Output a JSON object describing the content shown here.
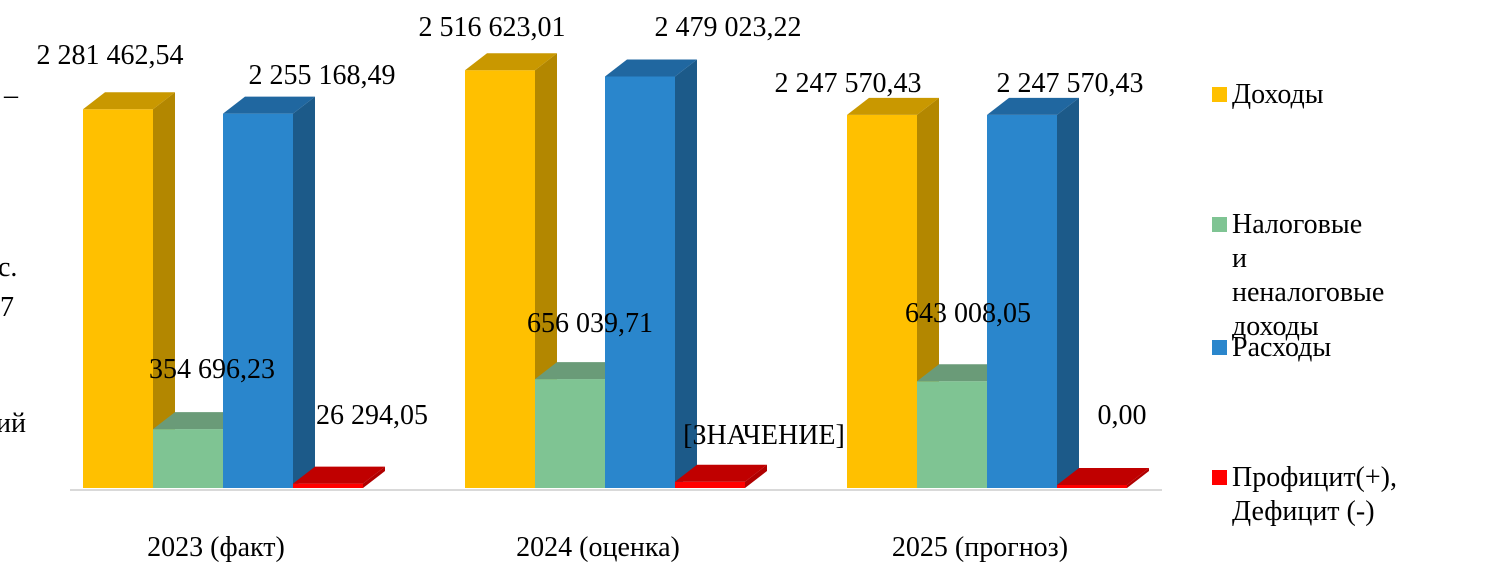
{
  "chart_data": {
    "type": "bar",
    "categories": [
      "2023 (факт)",
      "2024 (оценка)",
      "2025 (прогноз)"
    ],
    "series": [
      {
        "name": "Доходы",
        "color": "#ffc000",
        "side_color": "#b38700",
        "top_color": "#c99800",
        "values": [
          2281462.54,
          2516623.01,
          2247570.43
        ],
        "labels": [
          "2 281 462,54",
          "2 516 623,01",
          "2 247 570,43"
        ]
      },
      {
        "name": "Налоговые и неналоговые доходы",
        "color": "#7fc493",
        "side_color": "#5f946e",
        "top_color": "#6a9b78",
        "values": [
          354696.23,
          656039.71,
          643008.05
        ],
        "labels": [
          "354 696,23",
          "656 039,71",
          "643 008,05"
        ]
      },
      {
        "name": "Расходы",
        "color": "#2a86cc",
        "side_color": "#1c5a89",
        "top_color": "#2067a0",
        "values": [
          2255168.49,
          2479023.22,
          2247570.43
        ],
        "labels": [
          "2 255 168,49",
          "2 479 023,22",
          "2 247 570,43"
        ]
      },
      {
        "name": "Профицит(+), Дефицит (-)",
        "color": "#ff0000",
        "side_color": "#b00000",
        "top_color": "#c00000",
        "values": [
          26294.05,
          37599.79,
          0.0
        ],
        "labels": [
          "26 294,05",
          "[ЗНАЧЕНИЕ]",
          "0,00"
        ]
      }
    ],
    "legend_position": "right",
    "grid": false
  },
  "left_edge_fragments": [
    "–",
    "с.",
    "7",
    "ий"
  ]
}
